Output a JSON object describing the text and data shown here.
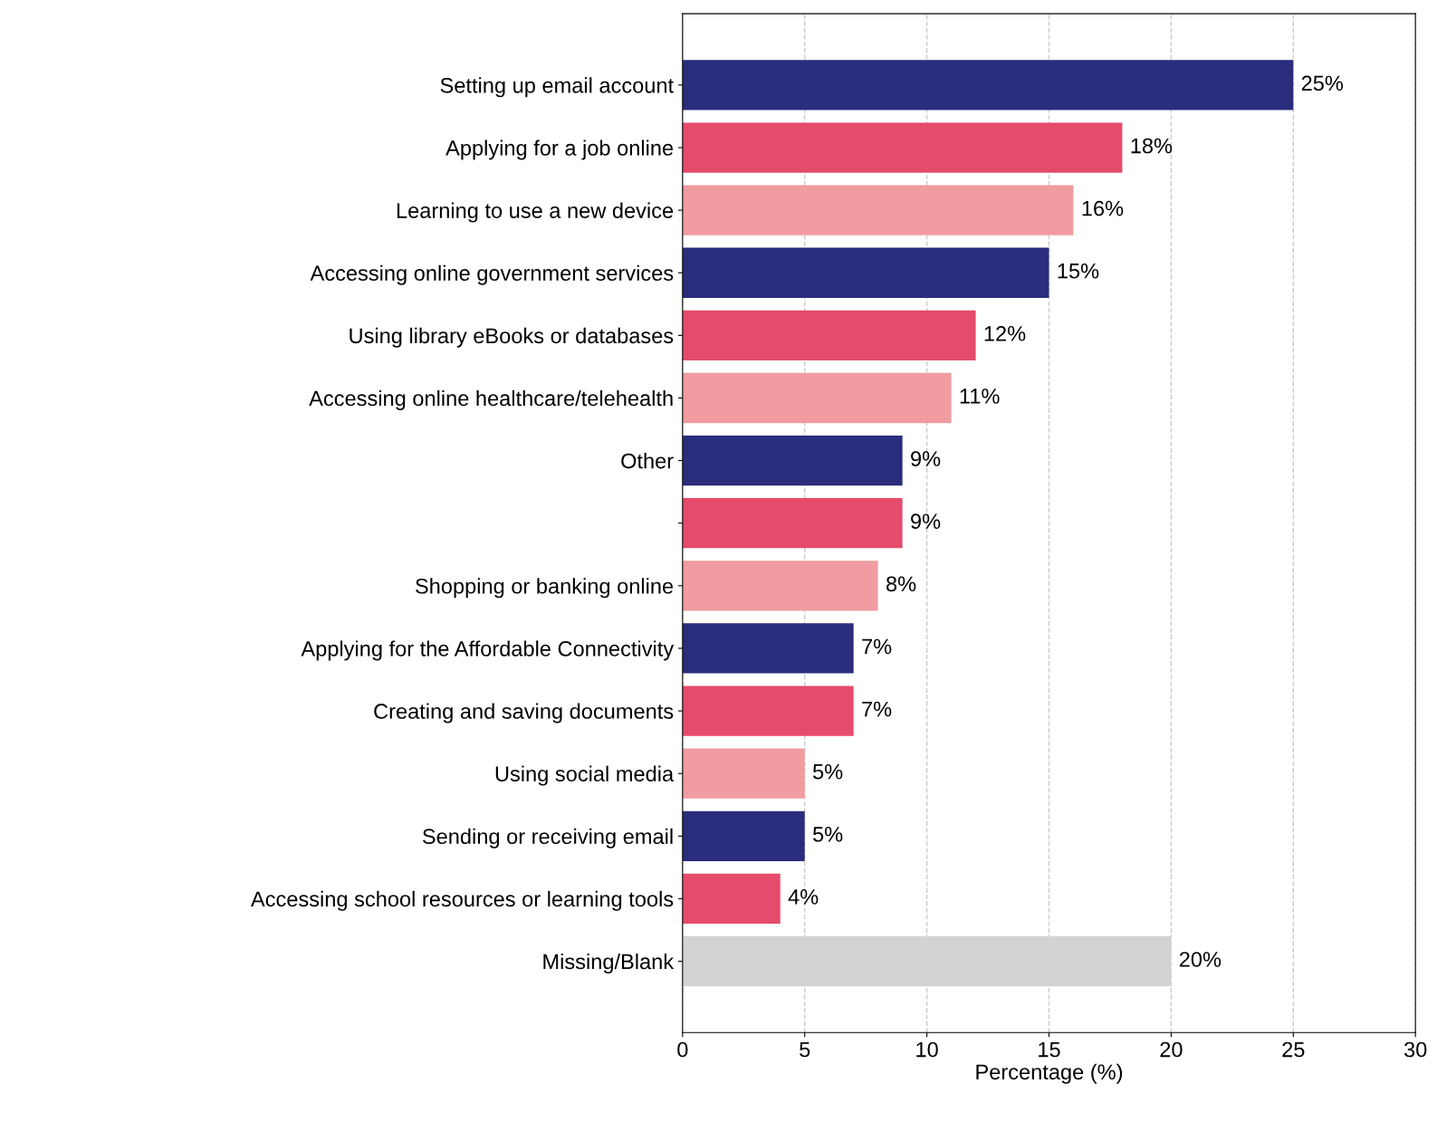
{
  "chart_data": {
    "type": "bar",
    "orientation": "horizontal",
    "xlabel": "Percentage (%)",
    "categories": [
      "Setting up email account",
      "Applying for a job online",
      "Learning to use a new device",
      "Accessing online government services",
      "Using library eBooks or databases",
      "Accessing online healthcare/telehealth",
      "Other",
      null,
      "Shopping or banking online",
      "Applying for the Affordable Connectivity",
      "Creating and saving documents",
      "Using social media",
      "Sending or receiving email",
      "Accessing school resources or learning tools",
      "Missing/Blank"
    ],
    "values": [
      25,
      18,
      16,
      15,
      12,
      11,
      9,
      9,
      8,
      7,
      7,
      5,
      5,
      4,
      20
    ],
    "colors": [
      "#2a2d7c",
      "#e54b6b",
      "#f09ca0",
      "#2a2d7c",
      "#e54b6b",
      "#f09ca0",
      "#2a2d7c",
      "#e54b6b",
      "#f09ca0",
      "#2a2d7c",
      "#e54b6b",
      "#f09ca0",
      "#2a2d7c",
      "#e54b6b",
      "#d3d3d3"
    ],
    "value_labels": [
      "25%",
      "18%",
      "16%",
      "15%",
      "12%",
      "11%",
      "9%",
      "9%",
      "8%",
      "7%",
      "7%",
      "5%",
      "5%",
      "4%",
      "20%"
    ],
    "xlim": [
      0,
      30
    ],
    "xticks": [
      0,
      5,
      10,
      15,
      20,
      25,
      30
    ],
    "grid": "x"
  }
}
